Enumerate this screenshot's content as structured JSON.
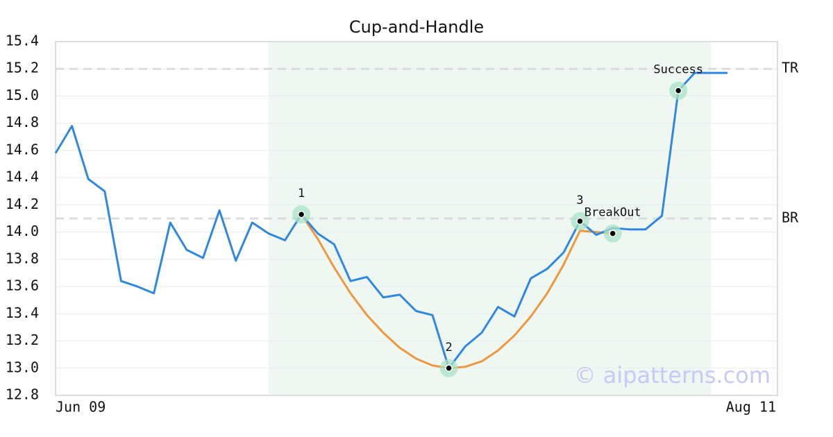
{
  "chart_data": {
    "type": "line",
    "title": "Cup-and-Handle",
    "x": [
      "Jun 09",
      null,
      null,
      null,
      null,
      null,
      null,
      null,
      null,
      null,
      null,
      null,
      null,
      null,
      null,
      null,
      null,
      null,
      null,
      null,
      null,
      null,
      null,
      null,
      null,
      null,
      null,
      null,
      null,
      null,
      null,
      null,
      null,
      null,
      null,
      null,
      null,
      null,
      null,
      null,
      null,
      "Aug 11"
    ],
    "series": [
      {
        "name": "Price",
        "color": "#2f87e0",
        "values": [
          14.58,
          14.78,
          14.39,
          14.3,
          13.64,
          13.6,
          13.55,
          14.07,
          13.87,
          13.81,
          14.16,
          13.79,
          14.07,
          13.99,
          13.94,
          14.13,
          13.99,
          13.91,
          13.64,
          13.67,
          13.52,
          13.54,
          13.42,
          13.39,
          13.0,
          13.16,
          13.26,
          13.45,
          13.38,
          13.66,
          13.73,
          13.85,
          14.08,
          13.98,
          14.03,
          14.02,
          14.02,
          14.12,
          15.04,
          15.17,
          15.17,
          15.17
        ]
      },
      {
        "name": "Cup",
        "color": "#f0963c",
        "values": [
          null,
          null,
          null,
          null,
          null,
          null,
          null,
          null,
          null,
          null,
          null,
          null,
          null,
          null,
          null,
          14.13,
          13.95,
          13.74,
          13.55,
          13.39,
          13.26,
          13.15,
          13.07,
          13.02,
          13.0,
          13.01,
          13.05,
          13.13,
          13.24,
          13.38,
          13.55,
          13.76,
          14.01,
          14.0,
          13.99,
          null,
          null,
          null,
          null,
          null,
          null,
          null
        ]
      }
    ],
    "highlight": [
      13,
      40
    ],
    "hlines": [
      {
        "value": 15.2,
        "label": "TR"
      },
      {
        "value": 14.1,
        "label": "BR"
      }
    ],
    "markers": [
      {
        "index": 15,
        "value": 14.13,
        "label": "1"
      },
      {
        "index": 24,
        "value": 13.0,
        "label": "2"
      },
      {
        "index": 32,
        "value": 14.08,
        "label": "3"
      },
      {
        "index": 34,
        "value": 13.99,
        "label": "BreakOut"
      },
      {
        "index": 38,
        "value": 15.04,
        "label": "Success"
      }
    ],
    "ylim": [
      12.8,
      15.4
    ],
    "yticks": [
      12.8,
      {
        "value": 13.0,
        "label": "13.0"
      },
      13.2,
      13.4,
      13.6,
      13.8,
      {
        "value": 14.0,
        "label": "14.0"
      },
      14.2,
      14.4,
      14.6,
      14.8,
      {
        "value": 15.0,
        "label": "15.0"
      },
      15.2,
      15.4
    ],
    "grid": true,
    "watermark": "© aipatterns.com"
  }
}
